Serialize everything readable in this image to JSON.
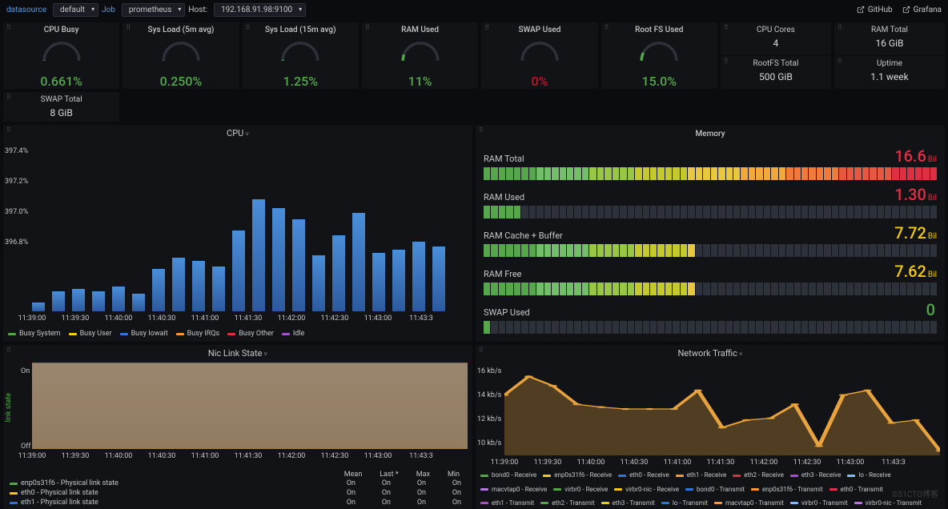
{
  "topbar": {
    "datasource_label": "datasource",
    "datasource_value": "default",
    "job_label": "Job",
    "job_value": "prometheus",
    "host_label": "Host:",
    "host_value": "192.168.91.98:9100",
    "github": "GitHub",
    "grafana": "Grafana"
  },
  "gauges": [
    {
      "title": "CPU Busy",
      "value": "0.661%",
      "color": "#56a64b",
      "pct": 0.7
    },
    {
      "title": "Sys Load (5m avg)",
      "value": "0.250%",
      "color": "#56a64b",
      "pct": 0.3
    },
    {
      "title": "Sys Load (15m avg)",
      "value": "1.25%",
      "color": "#56a64b",
      "pct": 1.3
    },
    {
      "title": "RAM Used",
      "value": "11%",
      "color": "#56a64b",
      "pct": 11
    },
    {
      "title": "SWAP Used",
      "value": "0%",
      "color": "#c4162a",
      "pct": 0
    },
    {
      "title": "Root FS Used",
      "value": "15.0%",
      "color": "#56a64b",
      "pct": 15
    }
  ],
  "stats": [
    {
      "top": {
        "title": "CPU Cores",
        "value": "4"
      },
      "bottom": {
        "title": "RootFS Total",
        "value": "500 GiB"
      }
    },
    {
      "top": {
        "title": "RAM Total",
        "value": "16 GiB"
      },
      "bottom": {
        "title": "Uptime",
        "value": "1.1 week"
      }
    },
    {
      "top": {
        "title": "SWAP Total",
        "value": "8 GiB"
      },
      "bottom": null
    }
  ],
  "cpu_chart": {
    "title": "CPU",
    "yticks": [
      "397.4%",
      "397.2%",
      "397.0%",
      "396.8%"
    ],
    "xticks": [
      "11:39:00",
      "11:39:30",
      "11:40:00",
      "11:40:30",
      "11:41:00",
      "11:41:30",
      "11:42:00",
      "11:42:30",
      "11:43:00",
      "11:43:3"
    ],
    "bars": [
      8,
      18,
      20,
      18,
      22,
      16,
      38,
      48,
      45,
      40,
      72,
      100,
      92,
      82,
      50,
      68,
      88,
      52,
      55,
      62,
      58
    ],
    "bar_color": "#4a8ed9",
    "legend": [
      {
        "label": "Busy System",
        "color": "#56a64b"
      },
      {
        "label": "Busy User",
        "color": "#f2cc0c"
      },
      {
        "label": "Busy Iowait",
        "color": "#3274d9"
      },
      {
        "label": "Busy IRQs",
        "color": "#ff9830"
      },
      {
        "label": "Busy Other",
        "color": "#e02f44"
      },
      {
        "label": "Idle",
        "color": "#a352cc"
      }
    ]
  },
  "memory": {
    "title": "Memory",
    "rows": [
      {
        "label": "RAM Total",
        "value": "16.6",
        "unit": "Bil",
        "fill": 100,
        "color": "#e02f44"
      },
      {
        "label": "RAM Used",
        "value": "1.30",
        "unit": "Bil",
        "fill": 8,
        "color": "#e02f44"
      },
      {
        "label": "RAM Cache + Buffer",
        "value": "7.72",
        "unit": "Bil",
        "fill": 47,
        "color": "#f2cc0c"
      },
      {
        "label": "RAM Free",
        "value": "7.62",
        "unit": "Bil",
        "fill": 46,
        "color": "#f2cc0c"
      },
      {
        "label": "SWAP Used",
        "value": "0",
        "unit": "",
        "fill": 2,
        "color": "#56a64b"
      }
    ],
    "gradient": [
      "#56a64b",
      "#73bf69",
      "#9ac648",
      "#c4c92e",
      "#e8c83e",
      "#f0a93a",
      "#ee7b3b",
      "#e85742",
      "#e02f44"
    ]
  },
  "nic": {
    "title": "Nic Link State",
    "ylabel": "link state",
    "on": "On",
    "off": "Off",
    "xticks": [
      "11:39:00",
      "11:39:30",
      "11:40:00",
      "11:40:30",
      "11:41:00",
      "11:41:30",
      "11:42:00",
      "11:42:30",
      "11:43:00",
      "11:43:3"
    ],
    "cols": [
      "Mean",
      "Last *",
      "Max",
      "Min"
    ],
    "rows": [
      {
        "sw": "#56a64b",
        "name": "enp0s31f6 - Physical link state",
        "vals": [
          "On",
          "On",
          "On",
          "On"
        ]
      },
      {
        "sw": "#f2cc0c",
        "name": "eth0 - Physical link state",
        "vals": [
          "On",
          "On",
          "On",
          "On"
        ]
      },
      {
        "sw": "#3274d9",
        "name": "eth1 - Physical link state",
        "vals": [
          "On",
          "On",
          "On",
          "On"
        ]
      }
    ]
  },
  "net": {
    "title": "Network Traffic",
    "yticks": [
      "16 kb/s",
      "14 kb/s",
      "12 kb/s",
      "10 kb/s"
    ],
    "xticks": [
      "11:39:00",
      "11:39:30",
      "11:40:00",
      "11:40:30",
      "11:41:00",
      "11:41:30",
      "11:42:00",
      "11:42:30",
      "11:43:00",
      "11:43:3"
    ],
    "line_color": "#e8a33d",
    "fill_color": "rgba(232,163,61,0.3)",
    "points": [
      0.35,
      0.15,
      0.25,
      0.45,
      0.48,
      0.5,
      0.5,
      0.5,
      0.3,
      0.7,
      0.62,
      0.6,
      0.45,
      0.9,
      0.35,
      0.3,
      0.65,
      0.62,
      0.95
    ],
    "legend": [
      {
        "c": "#56a64b",
        "t": "bond0 - Receive"
      },
      {
        "c": "#f2cc0c",
        "t": "enp0s31f6 - Receive"
      },
      {
        "c": "#3274d9",
        "t": "eth0 - Receive"
      },
      {
        "c": "#ff9830",
        "t": "eth1 - Receive"
      },
      {
        "c": "#e02f44",
        "t": "eth2 - Receive"
      },
      {
        "c": "#a352cc",
        "t": "eth3 - Receive"
      },
      {
        "c": "#8ab8ff",
        "t": "lo - Receive"
      },
      {
        "c": "#b877d9",
        "t": "macvtap0 - Receive"
      },
      {
        "c": "#56a64b",
        "t": "virbr0 - Receive"
      },
      {
        "c": "#f2cc0c",
        "t": "virbr0-nic - Receive"
      },
      {
        "c": "#3274d9",
        "t": "bond0 - Transmit"
      },
      {
        "c": "#ff9830",
        "t": "enp0s31f6 - Transmit"
      },
      {
        "c": "#e02f44",
        "t": "eth0 - Transmit"
      },
      {
        "c": "#a352cc",
        "t": "eth1 - Transmit"
      },
      {
        "c": "#56a64b",
        "t": "eth2 - Transmit"
      },
      {
        "c": "#f2cc0c",
        "t": "eth3 - Transmit"
      },
      {
        "c": "#3274d9",
        "t": "lo - Transmit"
      },
      {
        "c": "#ff9830",
        "t": "macvtap0 - Transmit"
      },
      {
        "c": "#8ab8ff",
        "t": "virbr0 - Transmit"
      },
      {
        "c": "#b877d9",
        "t": "virbr0-nic - Transmit"
      }
    ]
  },
  "watermark": "©51CTO博客"
}
